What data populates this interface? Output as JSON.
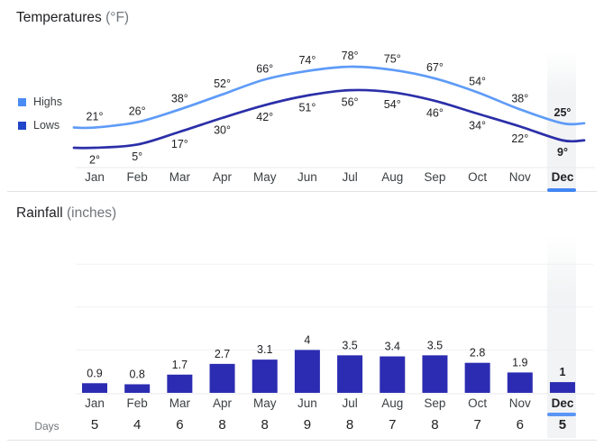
{
  "chart_data": [
    {
      "type": "line",
      "title": "Temperatures",
      "title_suffix": "(°F)",
      "unit": "°",
      "categories": [
        "Jan",
        "Feb",
        "Mar",
        "Apr",
        "May",
        "Jun",
        "Jul",
        "Aug",
        "Sep",
        "Oct",
        "Nov",
        "Dec"
      ],
      "series": [
        {
          "name": "Highs",
          "color": "#5e9bf7",
          "swatch_color": "#4a8cf5",
          "values": [
            21,
            26,
            38,
            52,
            66,
            74,
            78,
            75,
            67,
            54,
            38,
            25
          ]
        },
        {
          "name": "Lows",
          "color": "#2b2fa8",
          "swatch_color": "#2145cb",
          "values": [
            2,
            5,
            17,
            30,
            42,
            51,
            56,
            54,
            46,
            34,
            22,
            9
          ]
        }
      ],
      "legend_position": "left",
      "grid": false,
      "selected_category": "Dec",
      "selected_underline_color": "#4285f4",
      "highlight_color": "#f1f3f4"
    },
    {
      "type": "bar",
      "title": "Rainfall",
      "title_suffix": "(inches)",
      "categories": [
        "Jan",
        "Feb",
        "Mar",
        "Apr",
        "May",
        "Jun",
        "Jul",
        "Aug",
        "Sep",
        "Oct",
        "Nov",
        "Dec"
      ],
      "values": [
        0.9,
        0.8,
        1.7,
        2.7,
        3.1,
        4,
        3.5,
        3.4,
        3.5,
        2.8,
        1.9,
        1
      ],
      "bar_color": "#2c2cb2",
      "grid": true,
      "gridline_values": [
        4,
        8,
        12
      ],
      "ylim": [
        0,
        14
      ],
      "selected_category": "Dec",
      "selected_underline_color": "#5b96f6",
      "highlight_color": "#f1f3f4"
    },
    {
      "type": "table",
      "row_label": "Days",
      "categories": [
        "Jan",
        "Feb",
        "Mar",
        "Apr",
        "May",
        "Jun",
        "Jul",
        "Aug",
        "Sep",
        "Oct",
        "Nov",
        "Dec"
      ],
      "values": [
        5,
        4,
        6,
        8,
        8,
        9,
        8,
        7,
        8,
        7,
        6,
        5
      ],
      "selected_category": "Dec"
    }
  ]
}
